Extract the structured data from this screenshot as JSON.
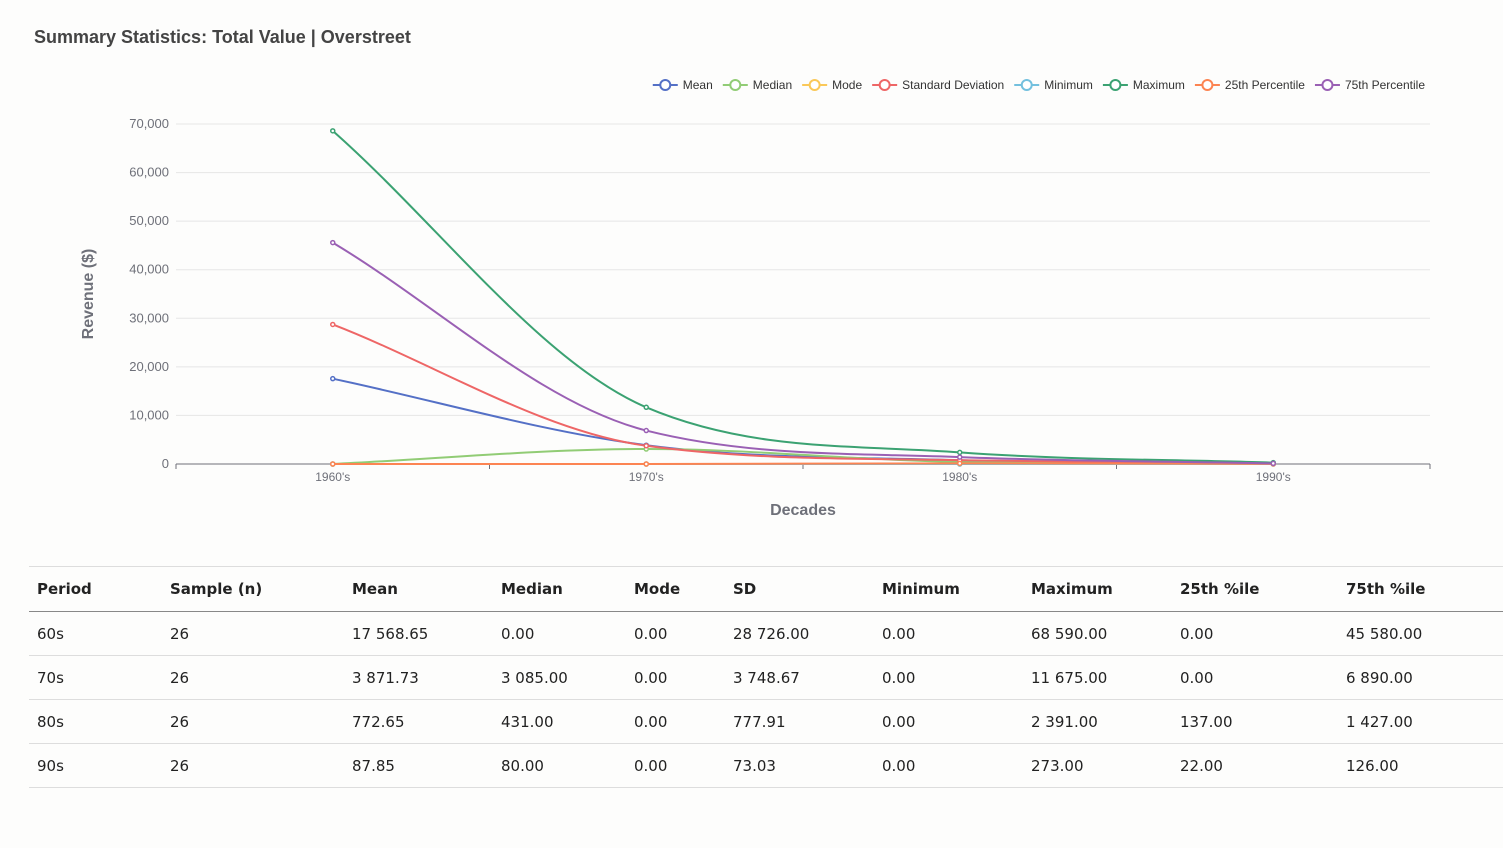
{
  "title": "Summary Statistics: Total Value | Overstreet",
  "chart_data": {
    "type": "line",
    "categories": [
      "1960's",
      "1970's",
      "1980's",
      "1990's"
    ],
    "ylim": [
      0,
      70000
    ],
    "yticks": [
      0,
      10000,
      20000,
      30000,
      40000,
      50000,
      60000,
      70000
    ],
    "xlabel": "Decades",
    "ylabel": "Revenue ($)",
    "legend_position": "top-right",
    "grid": true,
    "series": [
      {
        "name": "Mean",
        "color": "#5470c6",
        "values": [
          17568.65,
          3871.73,
          772.65,
          87.85
        ]
      },
      {
        "name": "Median",
        "color": "#91cc75",
        "values": [
          0,
          3085,
          431,
          80
        ]
      },
      {
        "name": "Mode",
        "color": "#fac858",
        "values": [
          0,
          0,
          0,
          0
        ]
      },
      {
        "name": "Standard Deviation",
        "color": "#ee6666",
        "values": [
          28726,
          3748.67,
          777.91,
          73.03
        ]
      },
      {
        "name": "Minimum",
        "color": "#73c0de",
        "values": [
          0,
          0,
          0,
          0
        ]
      },
      {
        "name": "Maximum",
        "color": "#3ba272",
        "values": [
          68590,
          11675,
          2391,
          273
        ]
      },
      {
        "name": "25th Percentile",
        "color": "#fc8452",
        "values": [
          0,
          0,
          137,
          22
        ]
      },
      {
        "name": "75th Percentile",
        "color": "#9a60b4",
        "values": [
          45580,
          6890,
          1427,
          126
        ]
      }
    ]
  },
  "table": {
    "headers": [
      "Period",
      "Sample (n)",
      "Mean",
      "Median",
      "Mode",
      "SD",
      "Minimum",
      "Maximum",
      "25th %ile",
      "75th %ile"
    ],
    "rows": [
      [
        "60s",
        "26",
        "17 568.65",
        "0.00",
        "0.00",
        "28 726.00",
        "0.00",
        "68 590.00",
        "0.00",
        "45 580.00"
      ],
      [
        "70s",
        "26",
        "3 871.73",
        "3 085.00",
        "0.00",
        "3 748.67",
        "0.00",
        "11 675.00",
        "0.00",
        "6 890.00"
      ],
      [
        "80s",
        "26",
        "772.65",
        "431.00",
        "0.00",
        "777.91",
        "0.00",
        "2 391.00",
        "137.00",
        "1 427.00"
      ],
      [
        "90s",
        "26",
        "87.85",
        "80.00",
        "0.00",
        "73.03",
        "0.00",
        "273.00",
        "22.00",
        "126.00"
      ]
    ]
  }
}
